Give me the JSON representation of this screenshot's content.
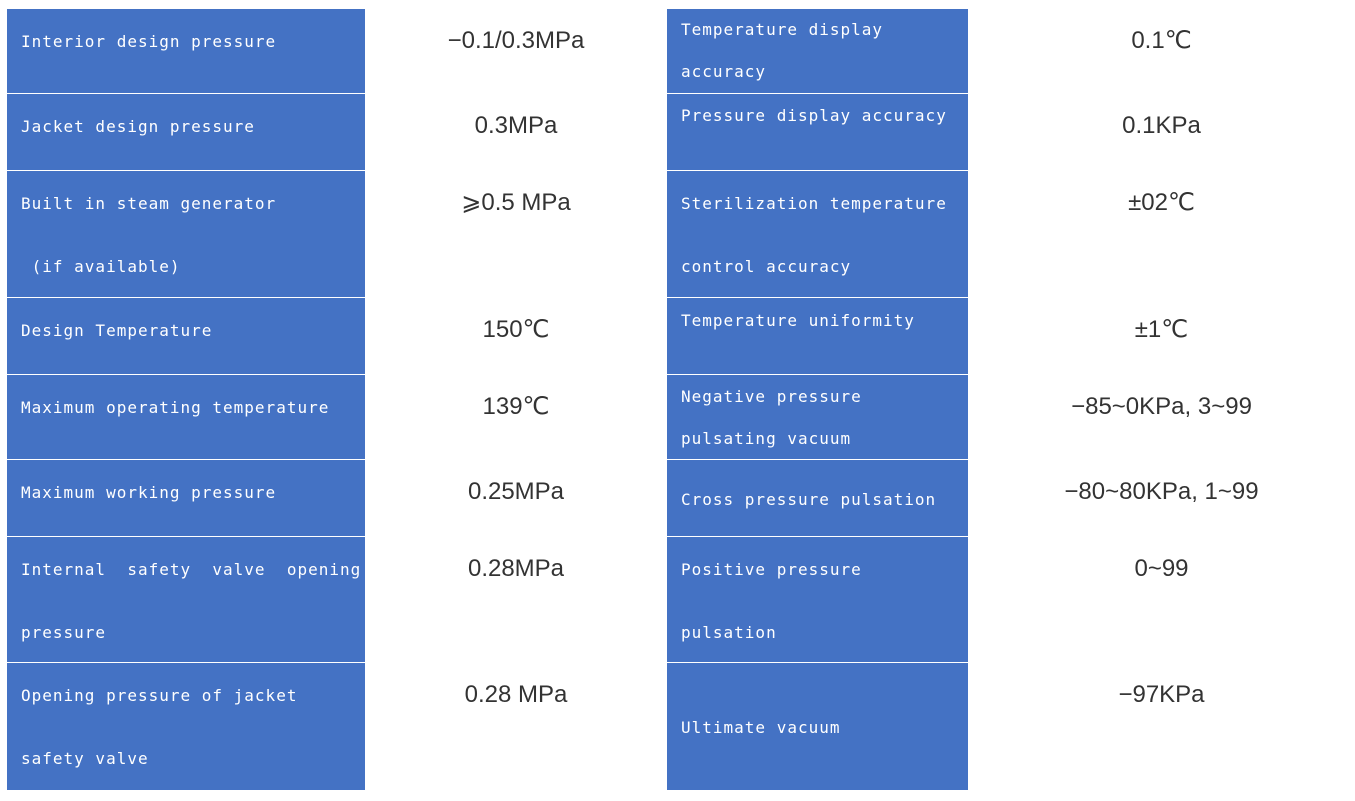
{
  "rows": [
    {
      "left_label": [
        "Interior design pressure"
      ],
      "left_value": "−0.1/0.3MPa",
      "right_label": [
        "Temperature display",
        "accuracy"
      ],
      "right_value": "0.1℃"
    },
    {
      "left_label": [
        "Jacket design pressure"
      ],
      "left_value": "0.3MPa",
      "right_label": [
        "Pressure display accuracy"
      ],
      "right_value": "0.1KPa"
    },
    {
      "left_label": [
        "Built in steam generator",
        " (if available)"
      ],
      "left_value": "⩾0.5 MPa",
      "right_label": [
        "Sterilization temperature",
        "control accuracy"
      ],
      "right_value": "±02℃"
    },
    {
      "left_label": [
        "Design Temperature"
      ],
      "left_value": "150℃",
      "right_label": [
        "Temperature uniformity"
      ],
      "right_value": "±1℃"
    },
    {
      "left_label": [
        "Maximum operating temperature"
      ],
      "left_value": "139℃",
      "right_label": [
        "Negative pressure",
        "pulsating vacuum"
      ],
      "right_value": "−85~0KPa, 3~99"
    },
    {
      "left_label": [
        "Maximum working pressure"
      ],
      "left_value": "0.25MPa",
      "right_label": [
        "Cross pressure pulsation"
      ],
      "right_value": "−80~80KPa, 1~99"
    },
    {
      "left_label": [
        "Internal  safety  valve  opening",
        "pressure"
      ],
      "left_value": "0.28MPa",
      "right_label": [
        "Positive pressure",
        "pulsation"
      ],
      "right_value": "0~99"
    },
    {
      "left_label": [
        "Opening pressure of jacket",
        "safety valve"
      ],
      "left_value": "0.28 MPa",
      "right_label": [
        "Ultimate vacuum"
      ],
      "right_value": "−97KPa"
    }
  ],
  "colors": {
    "label_bg": "#4472C4",
    "label_text": "#FFFFFF",
    "value_text": "#333333"
  }
}
